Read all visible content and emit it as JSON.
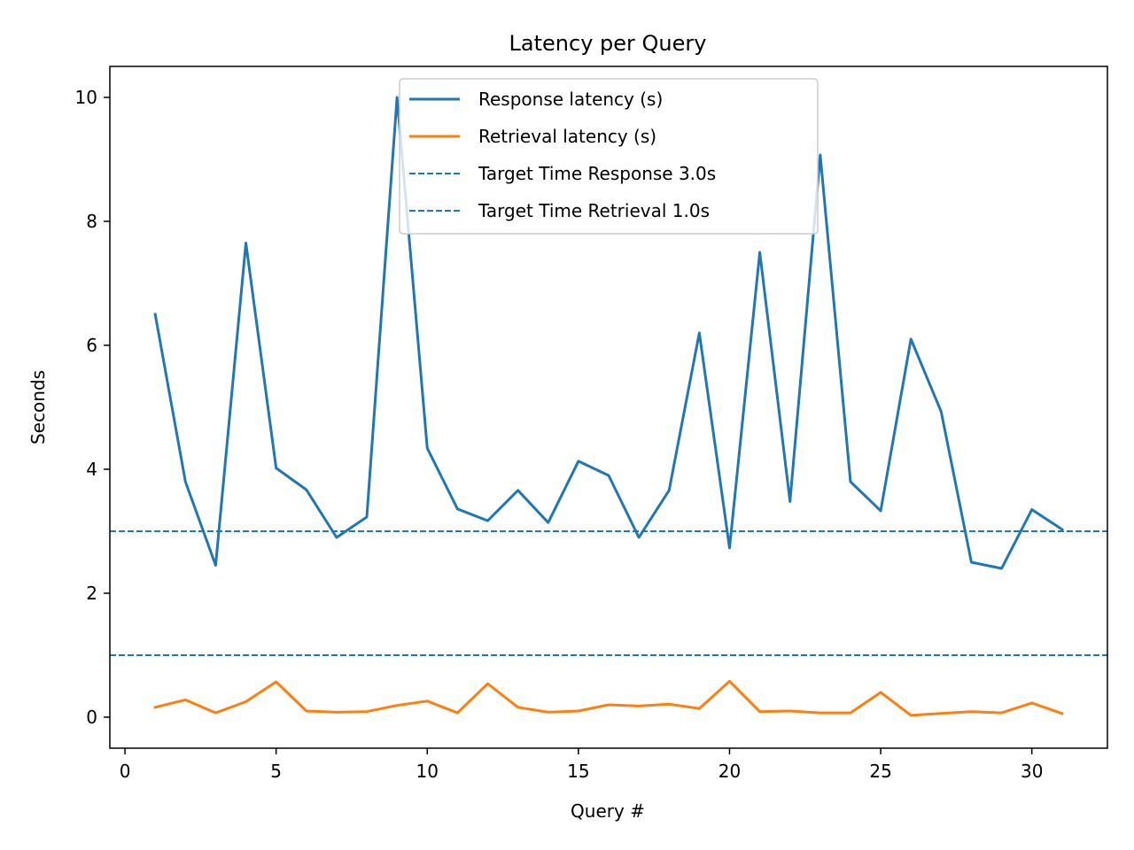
{
  "chart_data": {
    "type": "line",
    "title": "Latency per Query",
    "xlabel": "Query #",
    "ylabel": "Seconds",
    "xlim": [
      -0.5,
      32.5
    ],
    "ylim": [
      -0.5,
      10.5
    ],
    "xticks": [
      0,
      5,
      10,
      15,
      20,
      25,
      30
    ],
    "yticks": [
      0,
      2,
      4,
      6,
      8,
      10
    ],
    "grid": false,
    "legend_position": "upper center",
    "x": [
      1,
      2,
      3,
      4,
      5,
      6,
      7,
      8,
      9,
      10,
      11,
      12,
      13,
      14,
      15,
      16,
      17,
      18,
      19,
      20,
      21,
      22,
      23,
      24,
      25,
      26,
      27,
      28,
      29,
      30,
      31
    ],
    "series": [
      {
        "name": "Response latency (s)",
        "color": "#1f77b4",
        "style": "solid",
        "values": [
          6.5,
          3.8,
          2.45,
          7.65,
          4.02,
          3.67,
          2.9,
          3.23,
          10.0,
          4.34,
          3.36,
          3.17,
          3.66,
          3.14,
          4.13,
          3.9,
          2.9,
          3.66,
          6.2,
          2.73,
          7.5,
          3.48,
          9.07,
          3.8,
          3.33,
          6.1,
          4.93,
          2.5,
          2.4,
          3.35,
          3.03
        ]
      },
      {
        "name": "Retrieval latency (s)",
        "color": "#ff7f0e",
        "style": "solid",
        "values": [
          0.16,
          0.28,
          0.07,
          0.25,
          0.57,
          0.1,
          0.08,
          0.09,
          0.19,
          0.26,
          0.07,
          0.54,
          0.16,
          0.08,
          0.1,
          0.2,
          0.18,
          0.21,
          0.14,
          0.58,
          0.09,
          0.1,
          0.07,
          0.07,
          0.4,
          0.03,
          0.06,
          0.09,
          0.07,
          0.23,
          0.06
        ]
      }
    ],
    "reference_lines": [
      {
        "name": "Target Time Response 3.0s",
        "y": 3.0,
        "color": "#1f77b4",
        "style": "dashed"
      },
      {
        "name": "Target Time Retrieval 1.0s",
        "y": 1.0,
        "color": "#1f77b4",
        "style": "dashed"
      }
    ]
  }
}
